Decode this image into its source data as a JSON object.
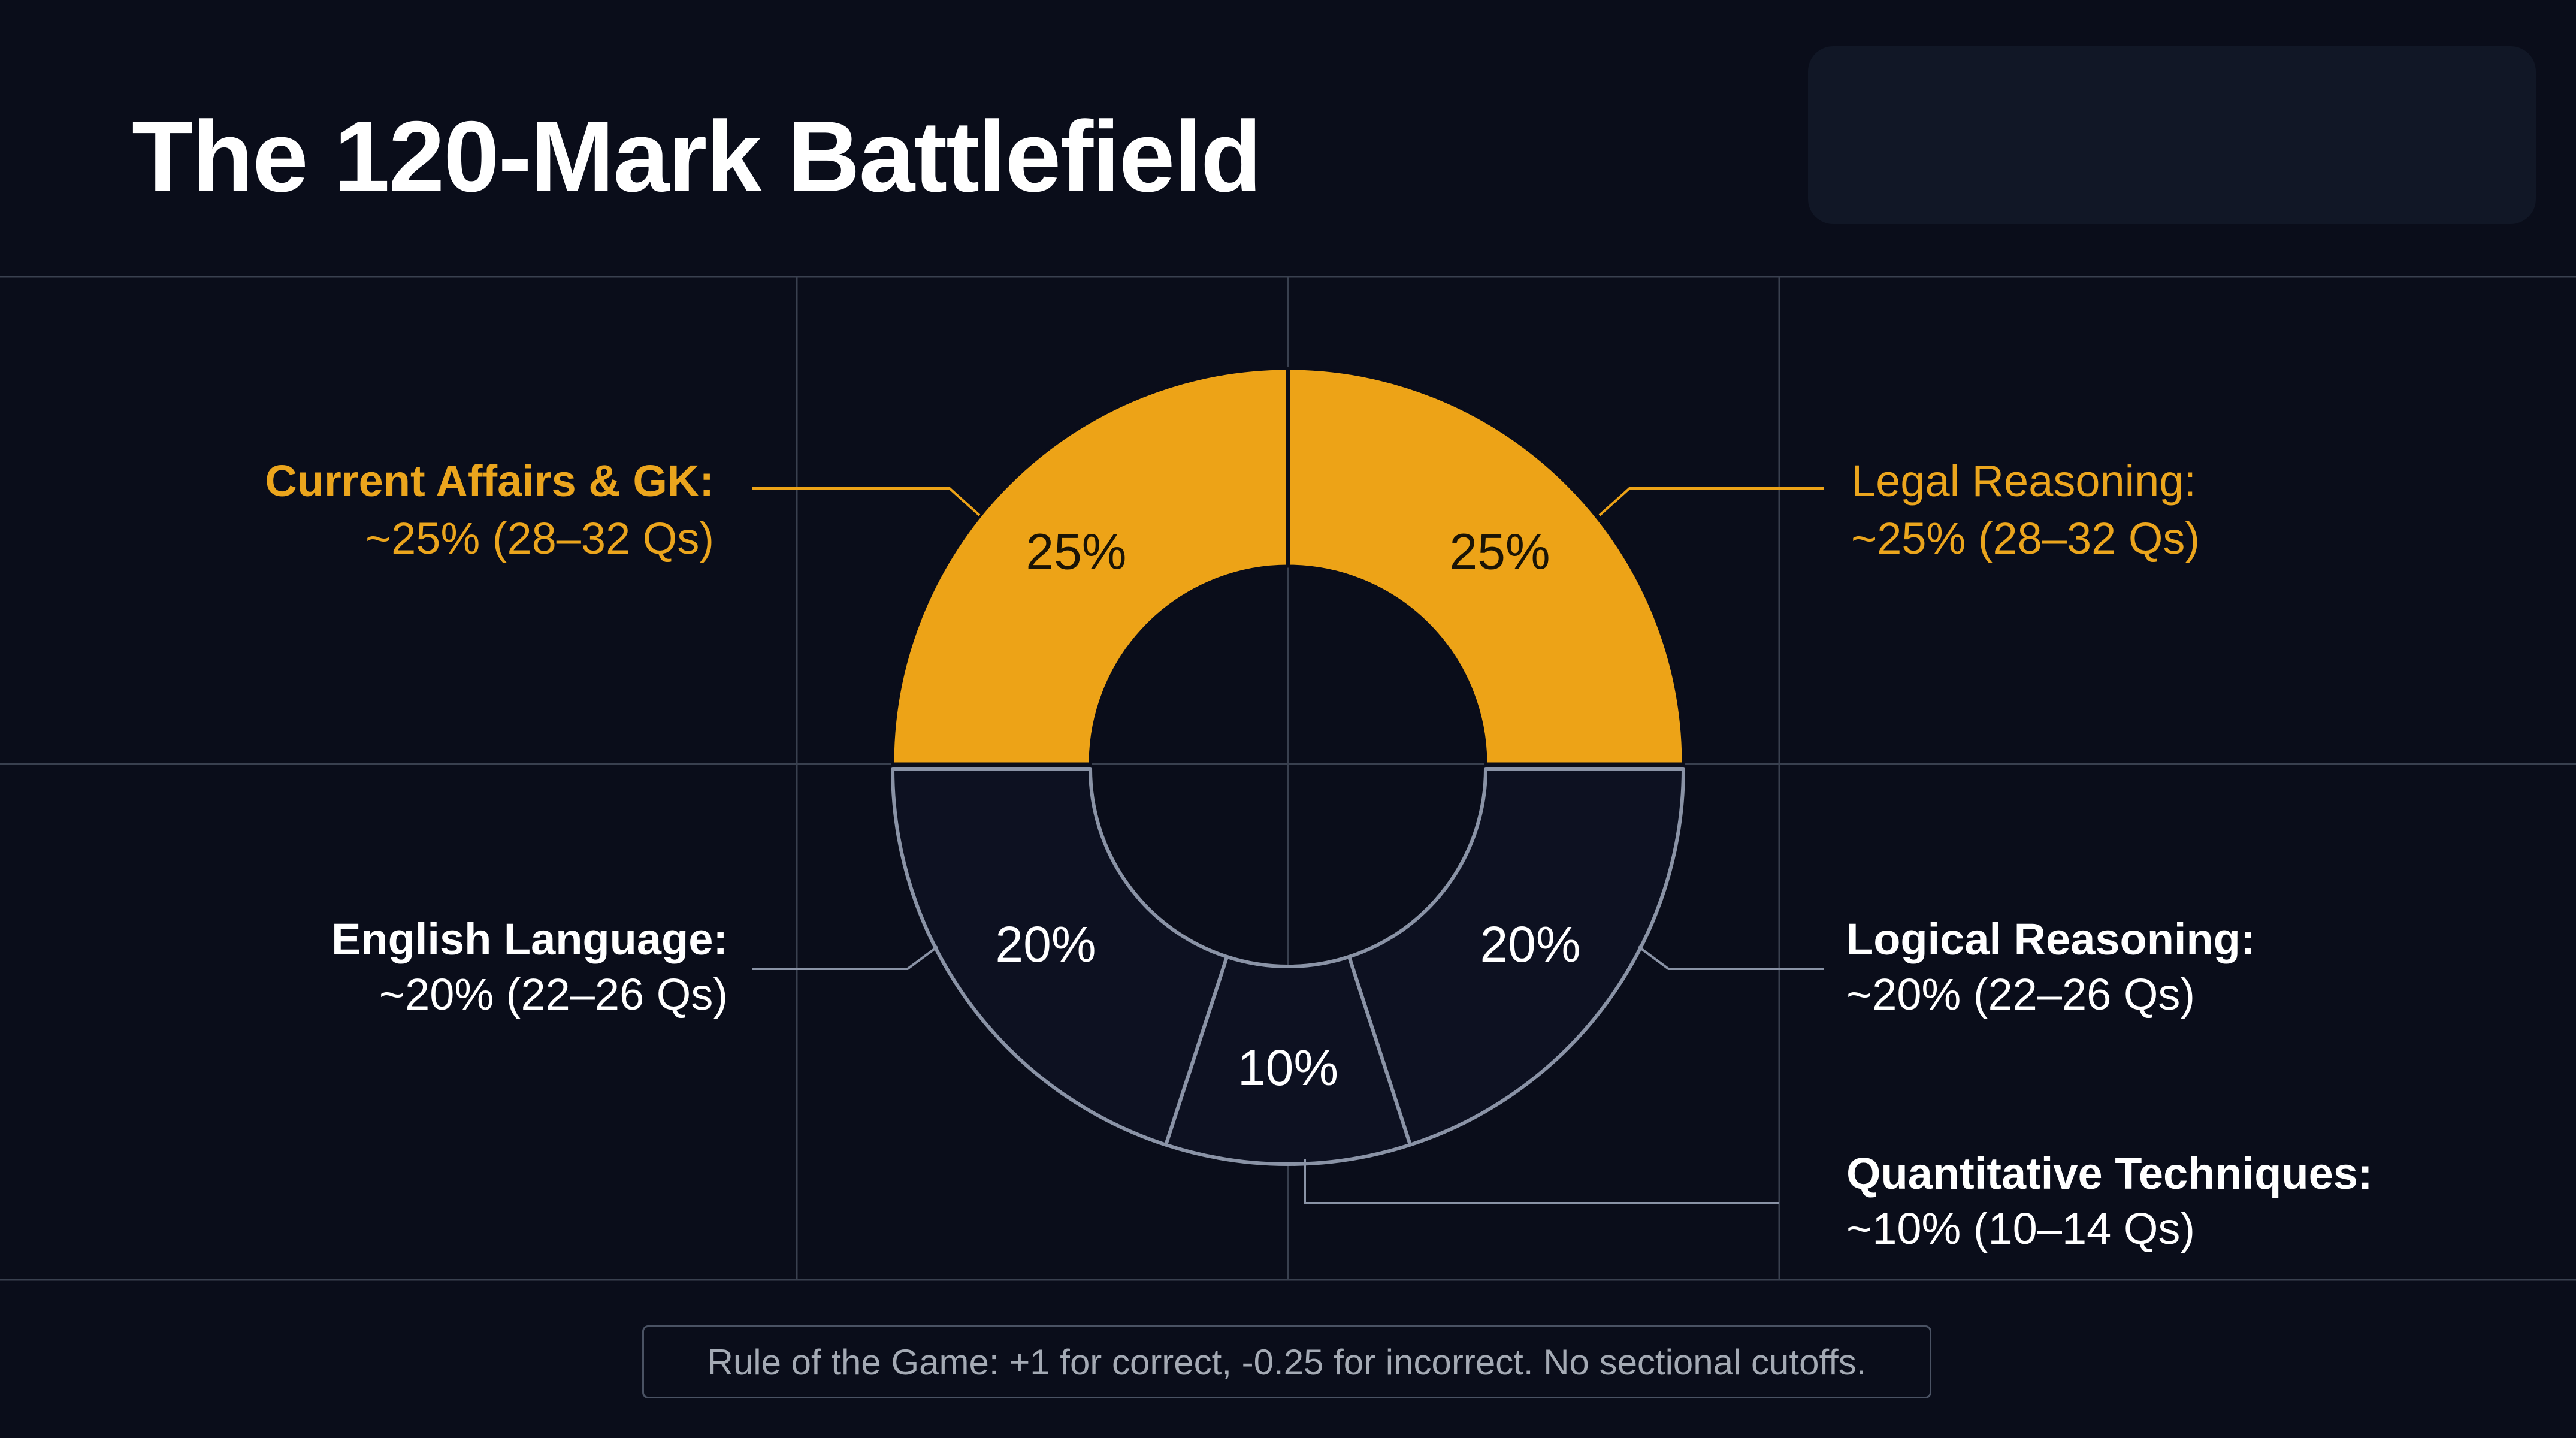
{
  "title": "The 120-Mark Battlefield",
  "colors": {
    "background": "#0a0d1a",
    "highlight": "#eda317",
    "highlight_text": "#eba51d",
    "muted_segment": "#0d1121",
    "segment_stroke": "#8a93a6",
    "grid": "#39404f",
    "text": "#ffffff"
  },
  "chart_data": {
    "type": "pie",
    "style": "half-donut exploded",
    "segments": [
      {
        "name": "Current Affairs & GK",
        "percent": 25,
        "label": "25%",
        "highlighted": true
      },
      {
        "name": "Legal Reasoning",
        "percent": 25,
        "label": "25%",
        "highlighted": true
      },
      {
        "name": "Logical Reasoning",
        "percent": 20,
        "label": "20%",
        "highlighted": false
      },
      {
        "name": "Quantitative Techniques",
        "percent": 10,
        "label": "10%",
        "highlighted": false
      },
      {
        "name": "English Language",
        "percent": 20,
        "label": "20%",
        "highlighted": false
      }
    ]
  },
  "callouts": {
    "current_affairs": {
      "head": "Current Affairs & GK:",
      "sub": "~25% (28–32 Qs)"
    },
    "legal": {
      "head": "Legal Reasoning:",
      "sub": "~25% (28–32 Qs)"
    },
    "english": {
      "head": "English Language:",
      "sub": "~20% (22–26 Qs)"
    },
    "logical": {
      "head": "Logical Reasoning:",
      "sub": "~20% (22–26 Qs)"
    },
    "quant": {
      "head": "Quantitative Techniques:",
      "sub": "~10% (10–14 Qs)"
    }
  },
  "footer": {
    "rule": "Rule of the Game: +1 for correct, -0.25 for incorrect. No sectional cutoffs."
  }
}
